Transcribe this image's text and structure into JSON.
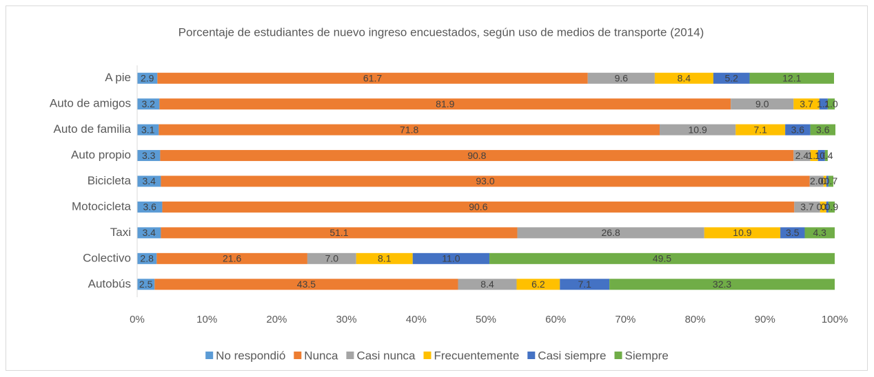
{
  "chart_data": {
    "type": "stacked_barh",
    "title": "Porcentaje de estudiantes de nuevo ingreso encuestados, según uso de medios de transporte (2014)",
    "categories": [
      "A pie",
      "Auto de amigos",
      "Auto de familia",
      "Auto propio",
      "Bicicleta",
      "Motocicleta",
      "Taxi",
      "Colectivo",
      "Autobús"
    ],
    "series": [
      {
        "name": "No respondió",
        "color": "#5b9bd5",
        "values": [
          2.9,
          3.2,
          3.1,
          3.3,
          3.4,
          3.6,
          3.4,
          2.8,
          2.5
        ],
        "value_labels": [
          "2.9",
          "3.2",
          "3.1",
          "3.3",
          "3.4",
          "3.6",
          "3.4",
          "2.8",
          "2.5"
        ]
      },
      {
        "name": "Nunca",
        "color": "#ed7d31",
        "values": [
          61.7,
          81.9,
          71.8,
          90.8,
          93.0,
          90.6,
          51.1,
          21.6,
          43.5
        ],
        "value_labels": [
          "61.7",
          "81.9",
          "71.8",
          "90.8",
          "93.0",
          "90.6",
          "51.1",
          "21.6",
          "43.5"
        ]
      },
      {
        "name": "Casi nunca",
        "color": "#a5a5a5",
        "values": [
          9.6,
          9.0,
          10.9,
          2.4,
          2.0,
          3.7,
          26.8,
          7.0,
          8.4
        ],
        "value_labels": [
          "9.6",
          "9.0",
          "10.9",
          "2.4",
          "2.0",
          "3.7",
          "26.8",
          "7.0",
          "8.4"
        ]
      },
      {
        "name": "Frecuentemente",
        "color": "#ffc000",
        "values": [
          8.4,
          3.7,
          7.1,
          1.1,
          0.4,
          0.9,
          10.9,
          8.1,
          6.2
        ],
        "value_labels": [
          "8.4",
          "3.7",
          "7.1",
          "1.1",
          "0.4",
          "0.9",
          "10.9",
          "8.1",
          "6.2"
        ]
      },
      {
        "name": "Casi siempre",
        "color": "#4472c4",
        "values": [
          5.2,
          1.2,
          3.6,
          1.0,
          0.3,
          0.3,
          3.5,
          11.0,
          7.1
        ],
        "value_labels": [
          "5.2",
          "1.2",
          "3.6",
          "1.0",
          "0.3",
          "0.3",
          "3.5",
          "11.0",
          "7.1"
        ]
      },
      {
        "name": "Siempre",
        "color": "#70ad47",
        "values": [
          12.1,
          1.0,
          3.6,
          0.4,
          0.7,
          0.9,
          4.3,
          49.5,
          32.3
        ],
        "value_labels": [
          "12.1",
          "1.0",
          "3.6",
          "0.4",
          "0.7",
          "0.9",
          "4.3",
          "49.5",
          "32.3"
        ]
      }
    ],
    "xlim": [
      0,
      100
    ],
    "xticks": [
      {
        "value": 0,
        "label": "0%"
      },
      {
        "value": 10,
        "label": "10%"
      },
      {
        "value": 20,
        "label": "20%"
      },
      {
        "value": 30,
        "label": "30%"
      },
      {
        "value": 40,
        "label": "40%"
      },
      {
        "value": 50,
        "label": "50%"
      },
      {
        "value": 60,
        "label": "60%"
      },
      {
        "value": 70,
        "label": "70%"
      },
      {
        "value": 80,
        "label": "80%"
      },
      {
        "value": 90,
        "label": "90%"
      },
      {
        "value": 100,
        "label": "100%"
      }
    ],
    "grid": false,
    "legend": "bottom"
  }
}
